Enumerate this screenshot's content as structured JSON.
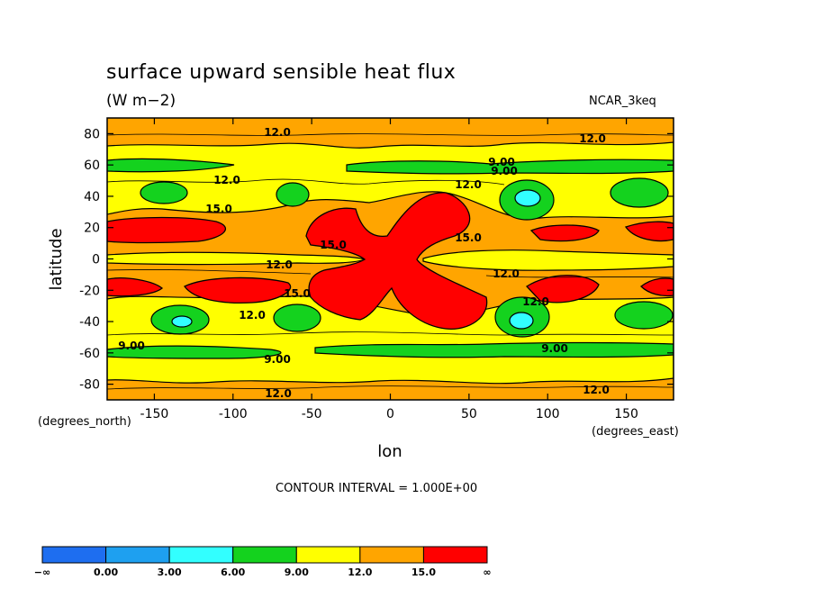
{
  "title": "surface upward sensible heat flux",
  "units": "(W m−2)",
  "dataset": "NCAR_3keq",
  "contour_interval": "CONTOUR INTERVAL = 1.000E+00",
  "chart_data": {
    "type": "contour",
    "xlabel": "lon",
    "ylabel": "latitude",
    "xunits": "(degrees_east)",
    "yunits": "(degrees_north)",
    "xlim": [
      -180,
      180
    ],
    "ylim": [
      -90,
      90
    ],
    "xticks": [
      -150,
      -100,
      -50,
      0,
      50,
      100,
      150
    ],
    "yticks": [
      -80,
      -60,
      -40,
      -20,
      0,
      20,
      40,
      60,
      80
    ],
    "contour_labels": [
      "12.0",
      "12.0",
      "9.00",
      "9.00",
      "12.0",
      "12.0",
      "15.0",
      "15.0",
      "15.0",
      "12.0",
      "12.0",
      "15.0",
      "12.0",
      "12.0",
      "9.00",
      "9.00",
      "9.00",
      "12.0",
      "12.0"
    ],
    "colorbar": {
      "levels": [
        "−∞",
        "0.00",
        "3.00",
        "6.00",
        "9.00",
        "12.0",
        "15.0",
        "∞"
      ],
      "colors": [
        "#1e6ef0",
        "#1ea0f0",
        "#32ffff",
        "#14d21e",
        "#ffff00",
        "#ffa500",
        "#ff0000"
      ]
    }
  }
}
